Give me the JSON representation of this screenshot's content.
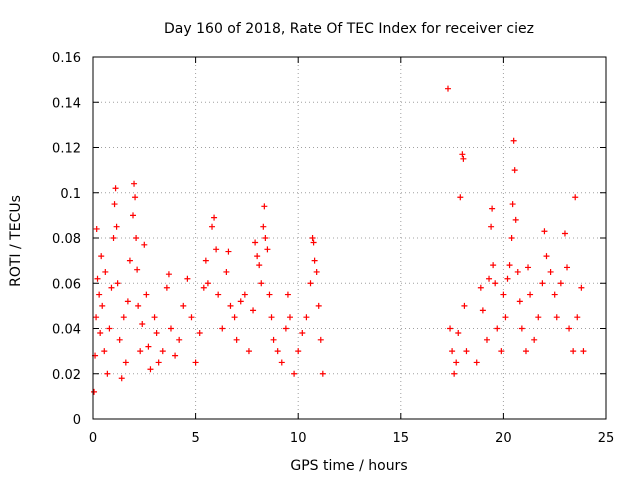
{
  "chart_data": {
    "type": "scatter",
    "title": "Day 160 of 2018, Rate Of TEC Index for receiver ciez",
    "xlabel": "GPS time / hours",
    "ylabel": "ROTI / TECUs",
    "xlim": [
      0,
      25
    ],
    "ylim": [
      0,
      0.16
    ],
    "xticks": [
      0,
      5,
      10,
      15,
      20,
      25
    ],
    "yticks": [
      0,
      0.02,
      0.04,
      0.06,
      0.08,
      0.1,
      0.12,
      0.14,
      0.16
    ],
    "xtick_labels": [
      "0",
      "5",
      "10",
      "15",
      "20",
      "25"
    ],
    "ytick_labels": [
      "0",
      "0.02",
      "0.04",
      "0.06",
      "0.08",
      "0.1",
      "0.12",
      "0.14",
      "0.16"
    ],
    "grid": true,
    "marker": "+",
    "color": "#ff0000",
    "series": [
      {
        "name": "ROTI",
        "points": [
          [
            0.05,
            0.012
          ],
          [
            0.1,
            0.028
          ],
          [
            0.15,
            0.045
          ],
          [
            0.18,
            0.084
          ],
          [
            0.22,
            0.062
          ],
          [
            0.3,
            0.055
          ],
          [
            0.35,
            0.038
          ],
          [
            0.4,
            0.072
          ],
          [
            0.45,
            0.05
          ],
          [
            0.55,
            0.03
          ],
          [
            0.6,
            0.065
          ],
          [
            0.7,
            0.02
          ],
          [
            0.8,
            0.04
          ],
          [
            0.9,
            0.058
          ],
          [
            1.0,
            0.08
          ],
          [
            1.05,
            0.095
          ],
          [
            1.1,
            0.102
          ],
          [
            1.15,
            0.085
          ],
          [
            1.2,
            0.06
          ],
          [
            1.3,
            0.035
          ],
          [
            1.4,
            0.018
          ],
          [
            1.5,
            0.045
          ],
          [
            1.6,
            0.025
          ],
          [
            1.7,
            0.052
          ],
          [
            1.8,
            0.07
          ],
          [
            1.95,
            0.09
          ],
          [
            2.0,
            0.104
          ],
          [
            2.05,
            0.098
          ],
          [
            2.1,
            0.08
          ],
          [
            2.15,
            0.066
          ],
          [
            2.2,
            0.05
          ],
          [
            2.3,
            0.03
          ],
          [
            2.4,
            0.042
          ],
          [
            2.5,
            0.077
          ],
          [
            2.6,
            0.055
          ],
          [
            2.7,
            0.032
          ],
          [
            2.8,
            0.022
          ],
          [
            3.0,
            0.045
          ],
          [
            3.1,
            0.038
          ],
          [
            3.2,
            0.025
          ],
          [
            3.4,
            0.03
          ],
          [
            3.6,
            0.058
          ],
          [
            3.7,
            0.064
          ],
          [
            3.8,
            0.04
          ],
          [
            4.0,
            0.028
          ],
          [
            4.2,
            0.035
          ],
          [
            4.4,
            0.05
          ],
          [
            4.6,
            0.062
          ],
          [
            4.8,
            0.045
          ],
          [
            5.0,
            0.025
          ],
          [
            5.2,
            0.038
          ],
          [
            5.4,
            0.058
          ],
          [
            5.5,
            0.07
          ],
          [
            5.6,
            0.06
          ],
          [
            5.8,
            0.085
          ],
          [
            5.9,
            0.089
          ],
          [
            6.0,
            0.075
          ],
          [
            6.1,
            0.055
          ],
          [
            6.3,
            0.04
          ],
          [
            6.5,
            0.065
          ],
          [
            6.6,
            0.074
          ],
          [
            6.7,
            0.05
          ],
          [
            6.9,
            0.045
          ],
          [
            7.0,
            0.035
          ],
          [
            7.2,
            0.052
          ],
          [
            7.4,
            0.055
          ],
          [
            7.6,
            0.03
          ],
          [
            7.8,
            0.048
          ],
          [
            7.9,
            0.078
          ],
          [
            8.0,
            0.072
          ],
          [
            8.1,
            0.068
          ],
          [
            8.2,
            0.06
          ],
          [
            8.3,
            0.085
          ],
          [
            8.35,
            0.094
          ],
          [
            8.4,
            0.08
          ],
          [
            8.5,
            0.075
          ],
          [
            8.6,
            0.055
          ],
          [
            8.7,
            0.045
          ],
          [
            8.8,
            0.035
          ],
          [
            9.0,
            0.03
          ],
          [
            9.2,
            0.025
          ],
          [
            9.4,
            0.04
          ],
          [
            9.5,
            0.055
          ],
          [
            9.6,
            0.045
          ],
          [
            9.8,
            0.02
          ],
          [
            10.0,
            0.03
          ],
          [
            10.2,
            0.038
          ],
          [
            10.4,
            0.045
          ],
          [
            10.6,
            0.06
          ],
          [
            10.7,
            0.08
          ],
          [
            10.75,
            0.078
          ],
          [
            10.8,
            0.07
          ],
          [
            10.9,
            0.065
          ],
          [
            11.0,
            0.05
          ],
          [
            11.1,
            0.035
          ],
          [
            11.2,
            0.02
          ],
          [
            17.3,
            0.146
          ],
          [
            17.4,
            0.04
          ],
          [
            17.5,
            0.03
          ],
          [
            17.6,
            0.02
          ],
          [
            17.7,
            0.025
          ],
          [
            17.8,
            0.038
          ],
          [
            17.9,
            0.098
          ],
          [
            18.0,
            0.117
          ],
          [
            18.05,
            0.115
          ],
          [
            18.1,
            0.05
          ],
          [
            18.2,
            0.03
          ],
          [
            18.7,
            0.025
          ],
          [
            18.9,
            0.058
          ],
          [
            19.0,
            0.048
          ],
          [
            19.2,
            0.035
          ],
          [
            19.3,
            0.062
          ],
          [
            19.4,
            0.085
          ],
          [
            19.45,
            0.093
          ],
          [
            19.5,
            0.068
          ],
          [
            19.6,
            0.06
          ],
          [
            19.7,
            0.04
          ],
          [
            19.9,
            0.03
          ],
          [
            20.0,
            0.055
          ],
          [
            20.1,
            0.045
          ],
          [
            20.2,
            0.062
          ],
          [
            20.3,
            0.068
          ],
          [
            20.4,
            0.08
          ],
          [
            20.45,
            0.095
          ],
          [
            20.5,
            0.123
          ],
          [
            20.55,
            0.11
          ],
          [
            20.6,
            0.088
          ],
          [
            20.7,
            0.065
          ],
          [
            20.8,
            0.052
          ],
          [
            20.9,
            0.04
          ],
          [
            21.1,
            0.03
          ],
          [
            21.2,
            0.067
          ],
          [
            21.3,
            0.055
          ],
          [
            21.5,
            0.035
          ],
          [
            21.7,
            0.045
          ],
          [
            21.9,
            0.06
          ],
          [
            22.0,
            0.083
          ],
          [
            22.1,
            0.072
          ],
          [
            22.3,
            0.065
          ],
          [
            22.5,
            0.055
          ],
          [
            22.6,
            0.045
          ],
          [
            22.8,
            0.06
          ],
          [
            23.0,
            0.082
          ],
          [
            23.1,
            0.067
          ],
          [
            23.2,
            0.04
          ],
          [
            23.4,
            0.03
          ],
          [
            23.5,
            0.098
          ],
          [
            23.6,
            0.045
          ],
          [
            23.8,
            0.058
          ],
          [
            23.9,
            0.03
          ]
        ]
      }
    ]
  }
}
